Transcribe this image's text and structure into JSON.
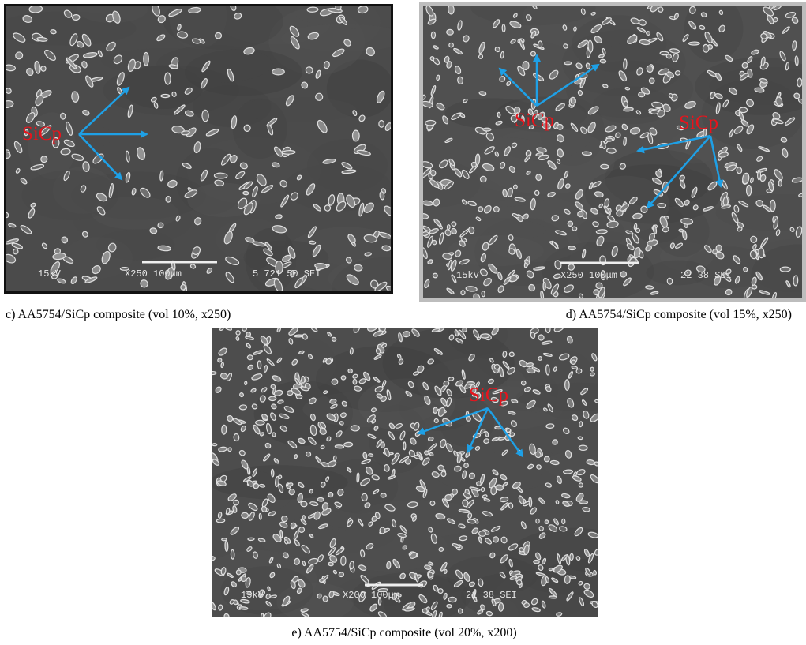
{
  "figures": [
    {
      "caption": "c) AA5754/SiCp composite (vol 10%, x250)",
      "labels": [
        "SiCp"
      ],
      "micrograph_text": [
        "15kV",
        "X250 100μm",
        "5 721 50 SEI"
      ]
    },
    {
      "caption": "d) AA5754/SiCp composite (vol 15%, x250)",
      "labels": [
        "SiCp",
        "SiCp"
      ],
      "micrograph_text": [
        "15kV",
        "X250 100μm",
        "22 38 SEI"
      ]
    },
    {
      "caption": "e) AA5754/SiCp composite (vol 20%, x200)",
      "labels": [
        "SiCp"
      ],
      "micrograph_text": [
        "15kV",
        "X200 100μm",
        "21 38 SEI"
      ]
    }
  ]
}
